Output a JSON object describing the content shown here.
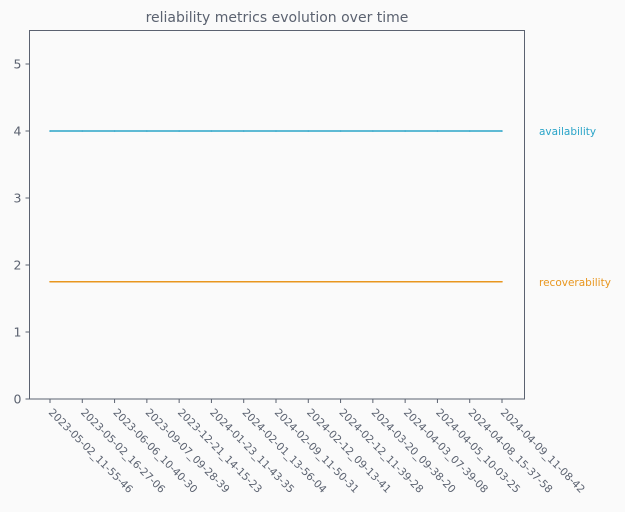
{
  "chart_data": {
    "type": "line",
    "title": "reliability metrics evolution over time",
    "xlabel": "",
    "ylabel": "",
    "x": [
      "2023-05-02_11-55-46",
      "2023-05-02_16-27-06",
      "2023-06-06_10-40-30",
      "2023-09-07_09-28-39",
      "2023-12-21_14-15-23",
      "2024-01-23_11-43-35",
      "2024-02-01_13-56-04",
      "2024-02-09_11-50-31",
      "2024-02-12_09-13-41",
      "2024-02-12_11-39-28",
      "2024-03-20_09-38-20",
      "2024-04-03_07-39-08",
      "2024-04-05_10-03-25",
      "2024-04-08_15-37-58",
      "2024-04-09_11-08-42"
    ],
    "series": [
      {
        "name": "availability",
        "color": "#2aa4c8",
        "values": [
          4,
          4,
          4,
          4,
          4,
          4,
          4,
          4,
          4,
          4,
          4,
          4,
          4,
          4,
          4
        ]
      },
      {
        "name": "recoverability",
        "color": "#e8961e",
        "values": [
          1.75,
          1.75,
          1.75,
          1.75,
          1.75,
          1.75,
          1.75,
          1.75,
          1.75,
          1.75,
          1.75,
          1.75,
          1.75,
          1.75,
          1.75
        ]
      }
    ],
    "yticks": [
      0,
      1,
      2,
      3,
      4,
      5
    ],
    "ylim": [
      0,
      5.5
    ],
    "grid": false,
    "legend": "right, inline labels"
  }
}
